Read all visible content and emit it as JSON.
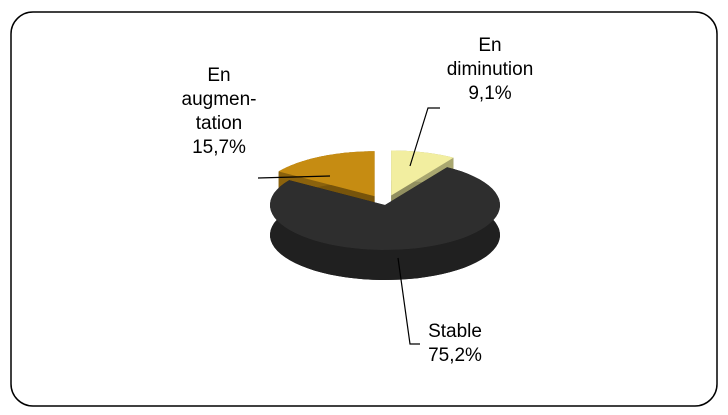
{
  "chart_data": {
    "type": "pie3d",
    "categories": [
      "En diminution",
      "Stable",
      "En augmen-tation"
    ],
    "values": [
      9.1,
      75.2,
      15.7
    ],
    "value_labels": [
      "9,1%",
      "75,2%",
      "15,7%"
    ],
    "colors": [
      "#f2eea0",
      "#2e2e2e",
      "#c68c12"
    ]
  }
}
